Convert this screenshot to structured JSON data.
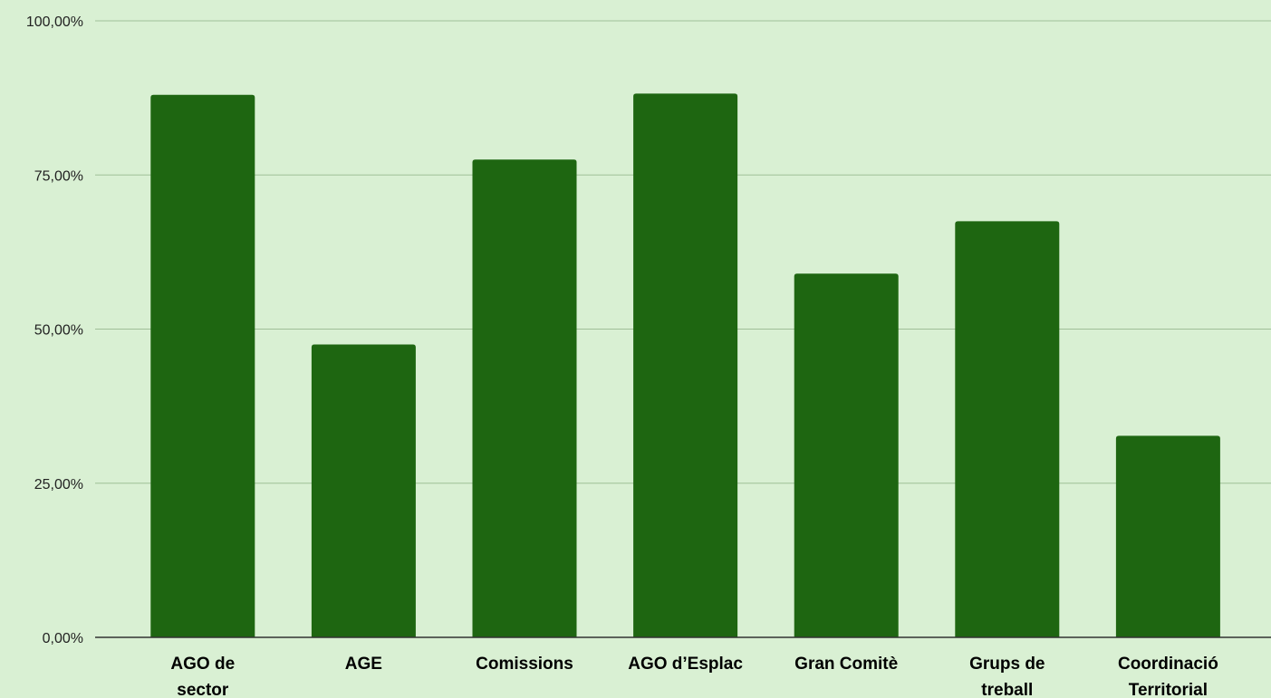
{
  "colors": {
    "background": "#d9f0d3",
    "bar": "#1e6611",
    "gridline": "#9fbf98",
    "axis": "#333333"
  },
  "chart_data": {
    "type": "bar",
    "title": "",
    "xlabel": "",
    "ylabel": "",
    "ylim": [
      0,
      100
    ],
    "y_ticks": [
      {
        "value": 0,
        "label": "0,00%"
      },
      {
        "value": 25,
        "label": "25,00%"
      },
      {
        "value": 50,
        "label": "50,00%"
      },
      {
        "value": 75,
        "label": "75,00%"
      },
      {
        "value": 100,
        "label": "100,00%"
      }
    ],
    "categories": [
      [
        "AGO de",
        "sector"
      ],
      [
        "AGE"
      ],
      [
        "Comissions"
      ],
      [
        "AGO d’Esplac"
      ],
      [
        "Gran Comitè"
      ],
      [
        "Grups de",
        "treball"
      ],
      [
        "Coordinació",
        "Territorial"
      ]
    ],
    "values": [
      88.0,
      47.5,
      77.5,
      88.2,
      59.0,
      67.5,
      32.7
    ],
    "grid": true,
    "legend": "none"
  }
}
